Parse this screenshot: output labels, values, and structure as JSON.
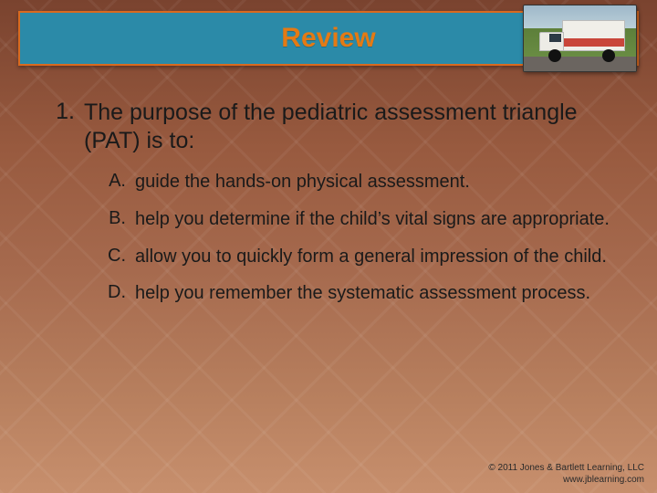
{
  "colors": {
    "title_bar_bg": "#2b8aa8",
    "title_bar_border": "#d96a1f",
    "title_text": "#e47a14",
    "body_text": "#1a1a1a",
    "bg_gradient_top": "#7a432f",
    "bg_gradient_bottom": "#c78f6d"
  },
  "typography": {
    "title_fontsize_pt": 22,
    "question_fontsize_pt": 19,
    "option_fontsize_pt": 15,
    "copyright_fontsize_pt": 8,
    "font_family": "Arial"
  },
  "header": {
    "title": "Review",
    "image_alt": "ambulance-photo"
  },
  "question": {
    "number": "1.",
    "text": "The purpose of the pediatric assessment triangle (PAT) is to:",
    "options": [
      {
        "letter": "A.",
        "text": "guide the hands-on physical assessment."
      },
      {
        "letter": "B.",
        "text": "help you determine if the child’s vital signs are appropriate."
      },
      {
        "letter": "C.",
        "text": "allow you to quickly form a general impression of the child."
      },
      {
        "letter": "D.",
        "text": "help you remember the systematic assessment process."
      }
    ]
  },
  "footer": {
    "copyright_line1": "© 2011 Jones & Bartlett Learning, LLC",
    "copyright_line2": "www.jblearning.com"
  }
}
